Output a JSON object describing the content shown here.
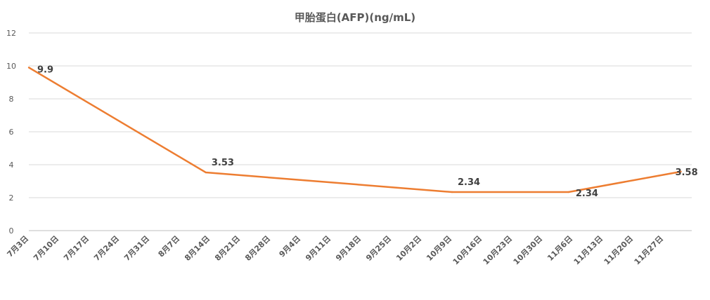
{
  "chart_data": {
    "type": "line",
    "title": "甲胎蛋白(AFP)(ng/mL)",
    "xlabel": "",
    "ylabel": "",
    "ylim": [
      0,
      12
    ],
    "y_ticks": [
      "0",
      "2",
      "4",
      "6",
      "8",
      "10",
      "12"
    ],
    "x_tick_labels": [
      "7月3日",
      "7月10日",
      "7月17日",
      "7月24日",
      "7月31日",
      "8月7日",
      "8月14日",
      "8月21日",
      "8月28日",
      "9月4日",
      "9月11日",
      "9月18日",
      "9月25日",
      "10月2日",
      "10月9日",
      "10月16日",
      "10月23日",
      "10月30日",
      "11月6日",
      "11月13日",
      "11月20日",
      "11月27日"
    ],
    "grid": true,
    "legend": "none",
    "line_color": "#ED7D31",
    "series": [
      {
        "points": [
          {
            "x": "7月3日",
            "y": 9.9,
            "label": "9.9"
          },
          {
            "x": "8月13日",
            "y": 3.53,
            "label": "3.53"
          },
          {
            "x": "10月9日",
            "y": 2.34,
            "label": "2.34"
          },
          {
            "x": "11月5日",
            "y": 2.34,
            "label": "2.34"
          },
          {
            "x": "12月1日",
            "y": 3.58,
            "label": "3.58"
          }
        ]
      }
    ]
  }
}
